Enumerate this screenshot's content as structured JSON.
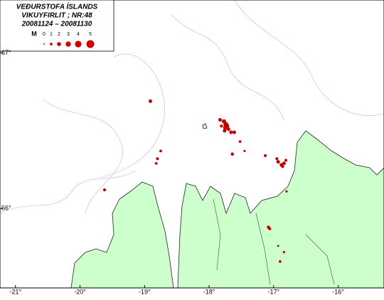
{
  "chart_data": {
    "type": "scatter",
    "title": "VEÐURSTOFA ÍSLANDS",
    "subtitle": "VIKUYFIRLIT ; NR:48",
    "date_range": "20081124  –  20081130",
    "legend": {
      "label": "M",
      "magnitudes": [
        0,
        1,
        2,
        3,
        4,
        5
      ]
    },
    "color": "#cc0000",
    "xlim": [
      -21.24,
      -15.29
    ],
    "ylim": [
      65.49,
      67.34
    ],
    "xticks": [
      {
        "value": -21,
        "label": "-21°"
      },
      {
        "value": -20,
        "label": "-20°"
      },
      {
        "value": -19,
        "label": "-19°"
      },
      {
        "value": -18,
        "label": "-18°"
      },
      {
        "value": -17,
        "label": "-17°"
      },
      {
        "value": -16,
        "label": "-16°"
      }
    ],
    "yticks": [
      {
        "value": 66,
        "label": "66°"
      },
      {
        "value": 67,
        "label": "67°"
      }
    ],
    "x": [
      -18.91,
      -18.75,
      -18.8,
      -18.82,
      -19.62,
      -17.83,
      -17.77,
      -17.74,
      -17.72,
      -17.75,
      -17.7,
      -17.76,
      -17.66,
      -17.61,
      -17.81,
      -17.52,
      -17.64,
      -17.45,
      -17.13,
      -16.95,
      -16.93,
      -16.88,
      -16.84,
      -16.81,
      -16.86,
      -16.8,
      -17.08,
      -17.06,
      -16.84,
      -16.93,
      -16.9
    ],
    "y": [
      66.69,
      66.37,
      66.32,
      66.29,
      66.12,
      66.57,
      66.56,
      66.54,
      66.53,
      66.52,
      66.51,
      66.5,
      66.49,
      66.49,
      66.53,
      66.43,
      66.35,
      66.37,
      66.34,
      66.32,
      66.3,
      66.28,
      66.29,
      66.31,
      66.27,
      66.11,
      65.88,
      65.87,
      65.72,
      65.76,
      65.66
    ],
    "magnitude": [
      1.5,
      0.8,
      1,
      0.8,
      1,
      1.5,
      2,
      2.5,
      2,
      2,
      1.5,
      1.5,
      1.5,
      1.5,
      1,
      0.8,
      1.2,
      0.5,
      1,
      1,
      1.5,
      1.5,
      1.5,
      1,
      1,
      0.5,
      1.2,
      1,
      0.5,
      0.3,
      0.8
    ]
  }
}
